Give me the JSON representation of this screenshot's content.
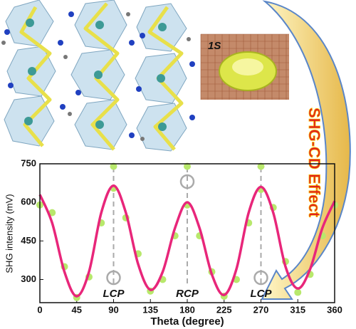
{
  "figure": {
    "photo_label": "1S",
    "side_label": "SHG-CD Effect"
  },
  "chart_data": {
    "type": "line",
    "xlabel": "Theta (degree)",
    "ylabel": "SHG intensity (mV)",
    "xlim": [
      0,
      360
    ],
    "xticks": [
      0,
      45,
      90,
      135,
      180,
      225,
      270,
      315,
      360
    ],
    "ylim": [
      210,
      750
    ],
    "yticks": [
      300,
      450,
      600,
      750
    ],
    "x": [
      0,
      15,
      30,
      45,
      60,
      75,
      90,
      105,
      120,
      135,
      150,
      165,
      180,
      195,
      210,
      225,
      240,
      255,
      270,
      285,
      300,
      315,
      330,
      345,
      360
    ],
    "series": [
      {
        "type": "line",
        "color": "#e8267a",
        "values": [
          630,
          520,
          330,
          235,
          330,
          560,
          665,
          560,
          360,
          260,
          330,
          500,
          600,
          500,
          320,
          240,
          340,
          560,
          660,
          560,
          350,
          265,
          340,
          500,
          605
        ]
      },
      {
        "type": "scatter",
        "color": "#b8e86c",
        "x": [
          0,
          15,
          30,
          45,
          60,
          75,
          90,
          90,
          105,
          120,
          135,
          150,
          165,
          180,
          180,
          195,
          210,
          225,
          240,
          255,
          270,
          270,
          285,
          300,
          315,
          330,
          345,
          360
        ],
        "values": [
          590,
          560,
          350,
          230,
          310,
          520,
          655,
          740,
          540,
          400,
          255,
          300,
          470,
          590,
          740,
          470,
          330,
          235,
          300,
          520,
          650,
          740,
          580,
          370,
          250,
          320,
          470,
          590
        ]
      }
    ],
    "annotations": [
      {
        "text": "LCP",
        "x": 90
      },
      {
        "text": "RCP",
        "x": 180
      },
      {
        "text": "LCP",
        "x": 270
      }
    ]
  }
}
